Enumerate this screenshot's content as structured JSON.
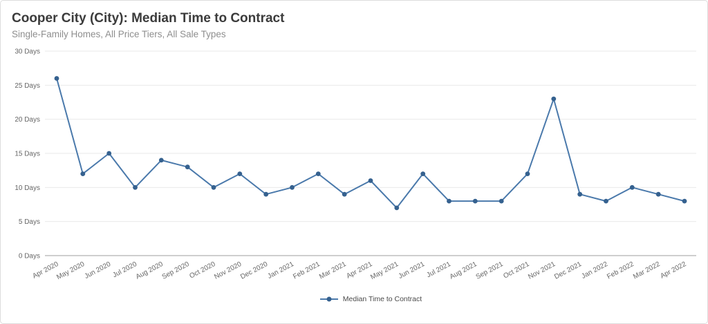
{
  "header": {
    "title": "Cooper City (City): Median Time to Contract",
    "subtitle": "Single-Family Homes, All Price Tiers, All Sale Types"
  },
  "legend": {
    "label": "Median Time to Contract"
  },
  "colors": {
    "line": "#4a79ab",
    "marker": "#35618f",
    "grid": "#e9e9e9",
    "axis": "#9e9e9e",
    "tick_text": "#666666"
  },
  "chart_data": {
    "type": "line",
    "title": "Cooper City (City): Median Time to Contract",
    "subtitle": "Single-Family Homes, All Price Tiers, All Sale Types",
    "categories": [
      "Apr 2020",
      "May 2020",
      "Jun 2020",
      "Jul 2020",
      "Aug 2020",
      "Sep 2020",
      "Oct 2020",
      "Nov 2020",
      "Dec 2020",
      "Jan 2021",
      "Feb 2021",
      "Mar 2021",
      "Apr 2021",
      "May 2021",
      "Jun 2021",
      "Jul 2021",
      "Aug 2021",
      "Sep 2021",
      "Oct 2021",
      "Nov 2021",
      "Dec 2021",
      "Jan 2022",
      "Feb 2022",
      "Mar 2022",
      "Apr 2022"
    ],
    "series": [
      {
        "name": "Median Time to Contract",
        "values": [
          26,
          12,
          15,
          10,
          14,
          13,
          10,
          12,
          9,
          10,
          12,
          9,
          11,
          7,
          12,
          8,
          8,
          8,
          12,
          23,
          9,
          8,
          10,
          9,
          8
        ]
      }
    ],
    "xlabel": "",
    "ylabel": "",
    "ylim": [
      0,
      30
    ],
    "yticks": [
      0,
      5,
      10,
      15,
      20,
      25,
      30
    ],
    "ytick_suffix": " Days",
    "grid": "horizontal",
    "legend_position": "bottom",
    "marker": "circle"
  }
}
